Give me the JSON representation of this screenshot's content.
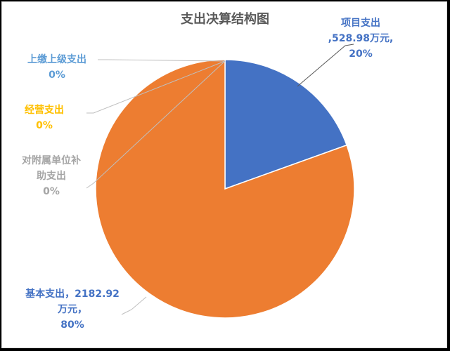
{
  "chart_data": {
    "type": "pie",
    "title": "支出决算结构图",
    "slices": [
      {
        "name": "项目支出",
        "value": 528.98,
        "unit": "万元",
        "percent": 20,
        "color": "#4472c4",
        "label_lines": [
          "项目支出",
          ",528.98万元,",
          "20%"
        ]
      },
      {
        "name": "基本支出",
        "value": 2182.92,
        "unit": "万元",
        "percent": 80,
        "color": "#ed7d31",
        "label_lines": [
          "基本支出，2182.92",
          "万元，",
          "80%"
        ]
      },
      {
        "name": "对附属单位补助支出",
        "value": 0,
        "percent": 0,
        "color": "#a5a5a5",
        "label_lines": [
          "对附属单位补",
          "助支出",
          "0%"
        ]
      },
      {
        "name": "经营支出",
        "value": 0,
        "percent": 0,
        "color": "#ffc000",
        "label_lines": [
          "经营支出",
          "0%"
        ]
      },
      {
        "name": "上缴上级支出",
        "value": 0,
        "percent": 0,
        "color": "#5b9bd5",
        "label_lines": [
          "上缴上级支出",
          "0%"
        ]
      }
    ],
    "legend": "none",
    "data_labels": "outside-with-leader-lines"
  }
}
